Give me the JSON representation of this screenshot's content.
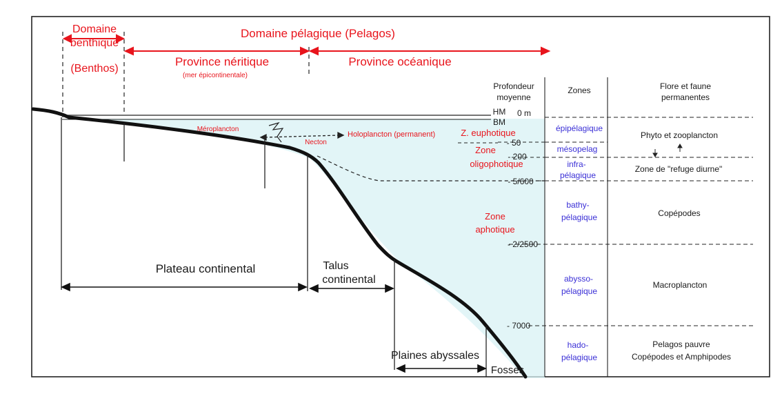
{
  "domains": {
    "benthic_line1": "Domaine",
    "benthic_line2": "benthique",
    "benthic_paren": "(Benthos)",
    "pelagic": "Domaine pélagique (Pelagos)"
  },
  "provinces": {
    "neritic": "Province néritique",
    "neritic_sub": "(mer épicontinentale)",
    "oceanic": "Province océanique"
  },
  "organisms": {
    "meroplancton": "Méroplancton",
    "necton": "Necton",
    "holoplancton": "Holoplancton (permanent)"
  },
  "light_zones": {
    "euphotic": "Z. euphotique",
    "oligo_line1": "Zone",
    "oligo_line2": "oligophotique",
    "aphotic_line1": "Zone",
    "aphotic_line2": "aphotique"
  },
  "features": {
    "plateau": "Plateau continental",
    "talus_line1": "Talus",
    "talus_line2": "continental",
    "plaines": "Plaines abyssales",
    "fosses": "Fosses"
  },
  "tide": {
    "hm": "HM",
    "bm": "BM"
  },
  "table": {
    "header_depth_line1": "Profondeur",
    "header_depth_line2": "moyenne",
    "header_zones": "Zones",
    "header_fauna_line1": "Flore et faune",
    "header_fauna_line2": "permanentes",
    "depths": [
      "0 m",
      "- 50",
      "- 200",
      "- 5/600",
      "- 2/2500",
      "- 7000"
    ],
    "zones": [
      {
        "line1": "épipélagique",
        "line2": ""
      },
      {
        "line1": "mésopelag",
        "line2": ""
      },
      {
        "line1": "infra-",
        "line2": "pélagique"
      },
      {
        "line1": "bathy-",
        "line2": "pélagique"
      },
      {
        "line1": "abysso-",
        "line2": "pélagique"
      },
      {
        "line1": "hado-",
        "line2": "pélagique"
      }
    ],
    "fauna": [
      {
        "line1": "Phyto et zooplancton",
        "line2": ""
      },
      {
        "line1": "Zone de \"refuge diurne\"",
        "line2": ""
      },
      {
        "line1": "Copépodes",
        "line2": ""
      },
      {
        "line1": "Macroplancton",
        "line2": ""
      },
      {
        "line1": "Pelagos pauvre",
        "line2": "Copépodes et Amphipodes"
      }
    ]
  },
  "colors": {
    "label_red": "#e8141c",
    "zone_blue": "#3a2fd6",
    "water_tint": "#d8f2f4",
    "seabed": "#111111"
  }
}
